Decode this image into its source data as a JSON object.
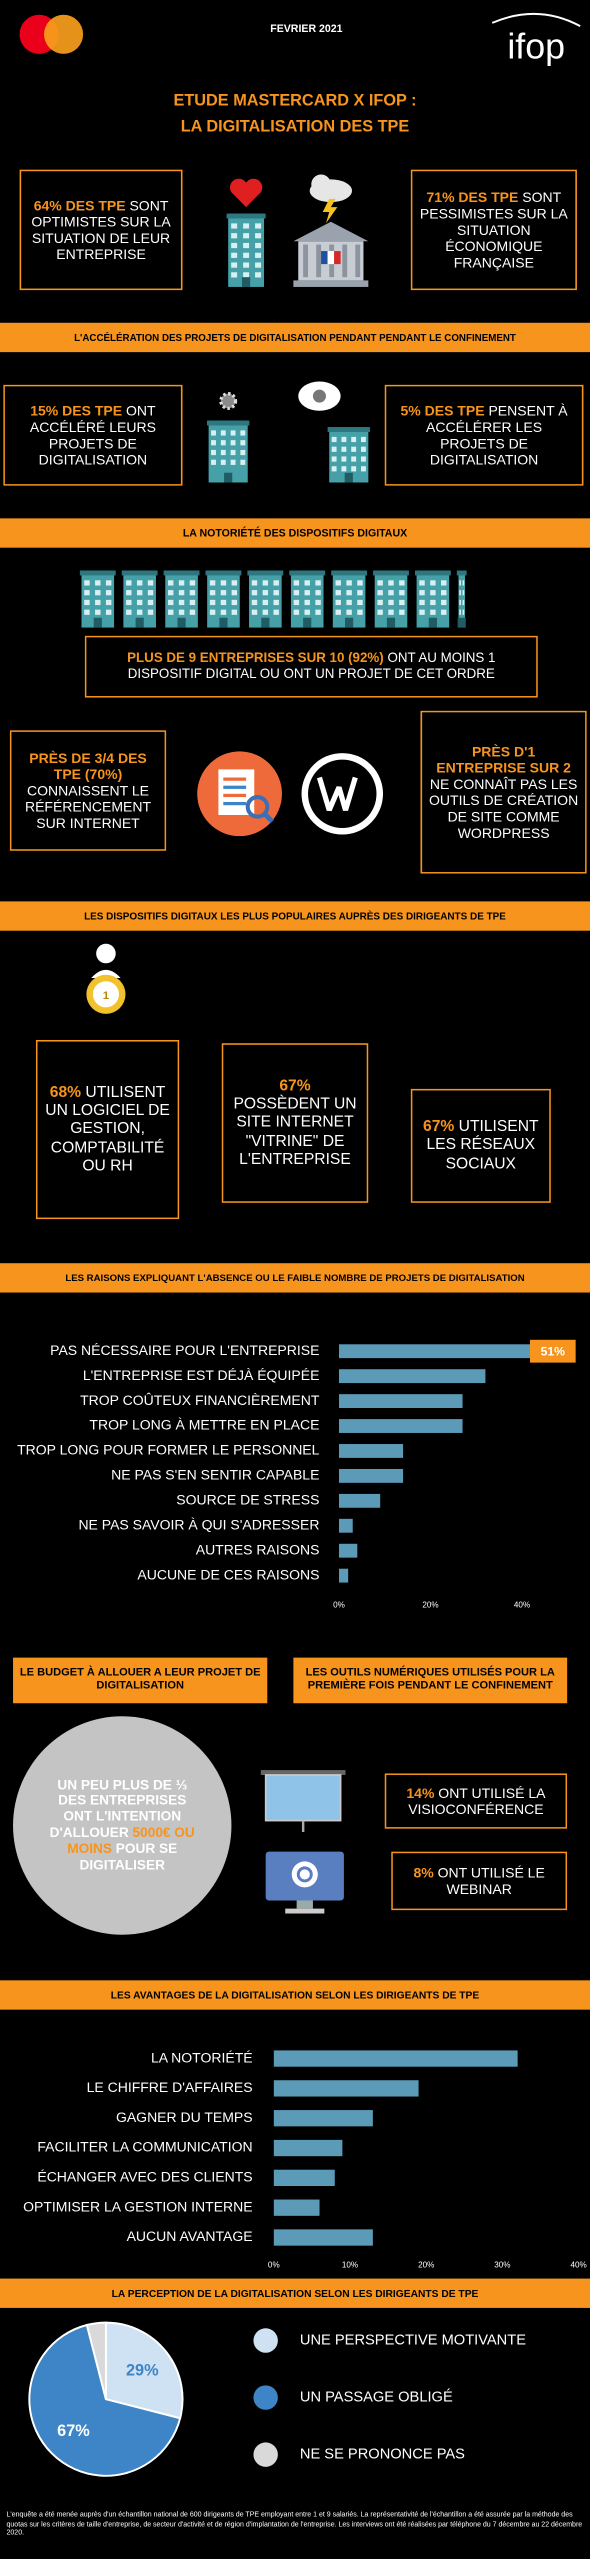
{
  "header": {
    "date": "FEVRIER 2021",
    "brand": "ifop",
    "title": [
      "ETUDE MASTERCARD X IFOP :",
      "LA DIGITALISATION DES TPE"
    ]
  },
  "sentiment": [
    {
      "highlight": "64% DES TPE",
      "text": "SONT OPTIMISTES SUR LA SITUATION DE LEUR ENTREPRISE"
    },
    {
      "highlight": "71% DES TPE",
      "text": "SONT PESSIMISTES SUR LA SITUATION ÉCONOMIQUE FRANÇAISE"
    }
  ],
  "acceleration": {
    "banner": "L'ACCÉLÉRATION DES PROJETS DE DIGITALISATION PENDANT PENDANT LE CONFINEMENT",
    "stats": [
      {
        "highlight": "15% DES TPE",
        "text": "ONT ACCÉLÉRÉ LEURS PROJETS DE DIGITALISATION"
      },
      {
        "highlight": "5% DES TPE",
        "text": "PENSENT À ACCÉLÉRER LES PROJETS DE DIGITALISATION"
      }
    ]
  },
  "notoriete": {
    "banner": "LA NOTORIÉTÉ DES DISPOSITIFS DIGITAUX",
    "stats": [
      {
        "highlight": "PLUS DE 9 ENTREPRISES SUR 10 (92%)",
        "text": "ONT AU MOINS 1 DISPOSITIF DIGITAL OU ONT UN PROJET DE CET ORDRE"
      },
      {
        "highlight": "PRÈS DE 3/4 DES TPE (70%)",
        "text": "CONNAISSENT LE RÉFÉRENCEMENT SUR INTERNET"
      },
      {
        "highlight": "PRÈS D'1 ENTREPRISE SUR 2",
        "text": "NE CONNAÎT PAS LES OUTILS DE CRÉATION DE SITE COMME WORDPRESS"
      }
    ]
  },
  "populaires": {
    "banner": "LES DISPOSITIFS DIGITAUX LES PLUS POPULAIRES AUPRÈS DES DIRIGEANTS DE TPE",
    "medal_rank": "1",
    "stats": [
      {
        "highlight": "68%",
        "text": "UTILISENT UN LOGICIEL DE GESTION, COMPTABILITÉ OU RH"
      },
      {
        "highlight": "67%",
        "text": "POSSÈDENT UN SITE INTERNET \"VITRINE\" DE L'ENTREPRISE"
      },
      {
        "highlight": "67%",
        "text": "UTILISENT LES RÉSEAUX SOCIAUX"
      }
    ]
  },
  "budget": {
    "heading": "LE BUDGET À ALLOUER A LEUR PROJET DE DIGITALISATION",
    "statement": [
      "UN PEU PLUS DE ⅓ DES ENTREPRISES ONT L'INTENTION D'ALLOUER",
      "5000€ OU MOINS",
      "POUR SE DIGITALISER"
    ]
  },
  "outils": {
    "heading": "LES OUTILS NUMÉRIQUES UTILISÉS POUR LA PREMIÈRE FOIS PENDANT LE CONFINEMENT",
    "stats": [
      {
        "highlight": "14%",
        "text": "ONT UTILISÉ LA VISIOCONFÉRENCE"
      },
      {
        "highlight": "8%",
        "text": "ONT UTILISÉ LE WEBINAR"
      }
    ]
  },
  "footer": "L'enquête a été menée auprès d'un échantillon national de 600 dirigeants de TPE employant entre 1 et 9 salariés. La représentativité de l'échantillon a été assurée par la méthode des quotas sur les critères de taille d'entreprise, de secteur d'activité et de région d'implantation de l'entreprise. Les interviews ont été réalisées par téléphone du 7 décembre au 22 décembre 2020.",
  "chart_data": [
    {
      "type": "bar",
      "orientation": "horizontal",
      "title": "LES RAISONS EXPLIQUANT L'ABSENCE OU LE FAIBLE NOMBRE DE PROJETS DE DIGITALISATION",
      "categories": [
        "PAS NÉCESSAIRE POUR L'ENTREPRISE",
        "L'ENTREPRISE EST DÉJÀ ÉQUIPÉE",
        "TROP COÛTEUX FINANCIÈREMENT",
        "TROP LONG À METTRE EN PLACE",
        "TROP LONG POUR FORMER LE PERSONNEL",
        "NE PAS S'EN SENTIR CAPABLE",
        "SOURCE DE STRESS",
        "NE PAS SAVOIR À QUI S'ADRESSER",
        "AUTRES RAISONS",
        "AUCUNE DE CES RAISONS"
      ],
      "values": [
        51,
        32,
        27,
        27,
        14,
        14,
        9,
        3,
        4,
        2
      ],
      "value_labels": [
        "51%",
        null,
        null,
        null,
        null,
        null,
        null,
        null,
        null,
        null
      ],
      "color": "#5b9bb8",
      "label_color": "#f7941d",
      "xlim": [
        0,
        52
      ],
      "xticks": [
        {
          "value": 0,
          "label": "0%"
        },
        {
          "value": 20,
          "label": "20%"
        },
        {
          "value": 40,
          "label": "40%"
        }
      ]
    },
    {
      "type": "bar",
      "orientation": "horizontal",
      "title": "LES AVANTAGES DE LA DIGITALISATION SELON LES DIRIGEANTS DE TPE",
      "categories": [
        "LA NOTORIÉTÉ",
        "LE CHIFFRE D'AFFAIRES",
        "GAGNER DU TEMPS",
        "FACILITER LA COMMUNICATION",
        "ÉCHANGER AVEC DES CLIENTS",
        "OPTIMISER LA GESTION INTERNE",
        "AUCUN AVANTAGE"
      ],
      "values": [
        32,
        19,
        13,
        9,
        8,
        6,
        13
      ],
      "color": "#5b9bb8",
      "xlim": [
        0,
        40
      ],
      "xticks": [
        {
          "value": 0,
          "label": "0%"
        },
        {
          "value": 10,
          "label": "10%"
        },
        {
          "value": 20,
          "label": "20%"
        },
        {
          "value": 30,
          "label": "30%"
        },
        {
          "value": 40,
          "label": "40%"
        }
      ]
    },
    {
      "type": "pie",
      "title": "LA PERCEPTION DE LA DIGITALISATION SELON LES DIRIGEANTS DE TPE",
      "categories": [
        "UNE PERSPECTIVE MOTIVANTE",
        "UN PASSAGE OBLIGÉ",
        "NE SE PRONONCE PAS"
      ],
      "values": [
        29,
        67,
        4
      ],
      "value_labels": [
        "29%",
        "67%",
        null
      ],
      "colors": [
        "#cfe2f3",
        "#3d85c6",
        "#d9d9d9"
      ]
    }
  ]
}
